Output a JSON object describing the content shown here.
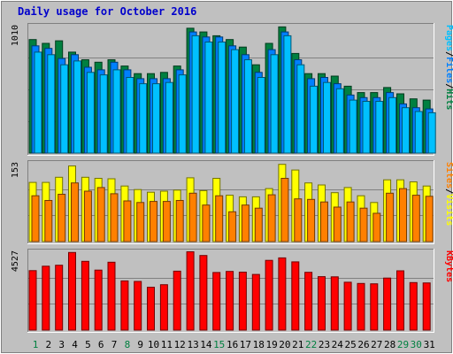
{
  "chart_data": {
    "type": "bar",
    "title": "Daily usage for October 2016",
    "categories": [
      "1",
      "2",
      "3",
      "4",
      "5",
      "6",
      "7",
      "8",
      "9",
      "10",
      "11",
      "12",
      "13",
      "14",
      "15",
      "16",
      "17",
      "18",
      "19",
      "20",
      "21",
      "22",
      "23",
      "24",
      "25",
      "26",
      "27",
      "28",
      "29",
      "30",
      "31"
    ],
    "weekend_days": [
      "1",
      "8",
      "15",
      "22",
      "29",
      "30"
    ],
    "panels": [
      {
        "id": "top",
        "max_label": "1010",
        "ymax": 1010,
        "right_label": [
          "Pages",
          "/",
          "Files",
          "/",
          "Hits"
        ],
        "series": [
          {
            "name": "Hits",
            "color": "#008040",
            "values": [
              900,
              870,
              890,
              800,
              740,
              720,
              740,
              690,
              630,
              630,
              640,
              690,
              990,
              960,
              930,
              900,
              840,
              700,
              870,
              1000,
              790,
              630,
              630,
              610,
              530,
              480,
              480,
              520,
              470,
              430,
              420
            ]
          },
          {
            "name": "Files",
            "color": "#0080ff",
            "values": [
              850,
              830,
              750,
              780,
              680,
              660,
              720,
              660,
              590,
              590,
              590,
              660,
              960,
              920,
              920,
              850,
              780,
              640,
              820,
              960,
              740,
              590,
              600,
              550,
              460,
              440,
              440,
              480,
              390,
              360,
              350
            ]
          },
          {
            "name": "Pages",
            "color": "#00c0ff",
            "values": [
              800,
              780,
              700,
              730,
              640,
              620,
              660,
              600,
              550,
              550,
              560,
              620,
              930,
              880,
              880,
              820,
              740,
              600,
              780,
              930,
              700,
              530,
              560,
              510,
              420,
              410,
              410,
              440,
              360,
              330,
              320
            ]
          }
        ]
      },
      {
        "id": "middle",
        "max_label": "153",
        "ymax": 153,
        "right_label": [
          "Sites",
          "/",
          "Visits"
        ],
        "series": [
          {
            "name": "Visits",
            "color": "#ffff00",
            "values": [
              115,
              115,
              125,
              147,
              125,
              123,
              122,
              108,
              101,
              96,
              98,
              100,
              124,
              99,
              123,
              90,
              87,
              87,
              103,
              150,
              139,
              114,
              110,
              95,
              105,
              89,
              76,
              120,
              120,
              116,
              108
            ]
          },
          {
            "name": "Sites",
            "color": "#ff8000",
            "values": [
              89,
              80,
              92,
              114,
              98,
              105,
              93,
              79,
              76,
              78,
              78,
              80,
              94,
              71,
              89,
              58,
              71,
              65,
              91,
              123,
              83,
              82,
              77,
              67,
              77,
              65,
              55,
              94,
              103,
              90,
              88
            ]
          }
        ]
      },
      {
        "id": "bottom",
        "max_label": "4527",
        "ymax": 4527,
        "right_label": [
          "KBytes"
        ],
        "series": [
          {
            "name": "KBytes",
            "color": "#ff0000",
            "values": [
              3420,
              3670,
              3730,
              4460,
              3950,
              3450,
              3900,
              2830,
              2800,
              2460,
              2610,
              3390,
              4500,
              4290,
              3310,
              3370,
              3330,
              3200,
              4010,
              4150,
              3920,
              3320,
              3070,
              3060,
              2750,
              2680,
              2660,
              2990,
              3410,
              2730,
              2710
            ]
          }
        ]
      }
    ]
  }
}
